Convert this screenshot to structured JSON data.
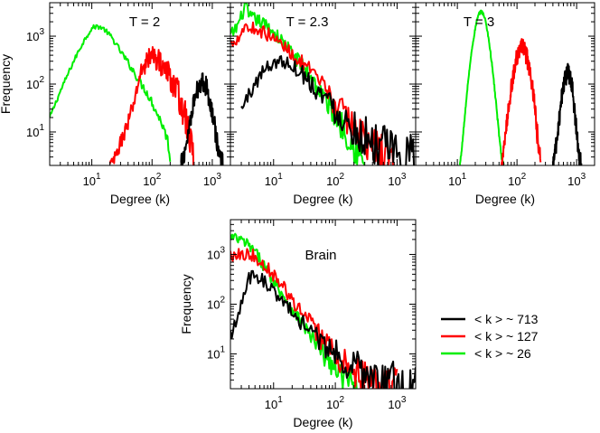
{
  "figure": {
    "legend": [
      {
        "label": "< k > ~ 713",
        "color": "#000000"
      },
      {
        "label": "< k > ~ 127",
        "color": "#ff0000"
      },
      {
        "label": "< k > ~ 26",
        "color": "#00ee00"
      }
    ]
  },
  "chart_data": [
    {
      "type": "line",
      "title": "T = 2",
      "xlabel": "Degree (k)",
      "ylabel": "Frequency",
      "xscale": "log",
      "yscale": "log",
      "xlim": [
        2,
        2000
      ],
      "ylim": [
        2,
        5000
      ],
      "xticks": [
        10,
        100,
        1000
      ],
      "xtick_labels": [
        {
          "base": "10",
          "exp": "1"
        },
        {
          "base": "10",
          "exp": "2"
        },
        {
          "base": "10",
          "exp": "3"
        }
      ],
      "yticks": [
        10,
        100,
        1000
      ],
      "ytick_labels": [
        {
          "base": "10",
          "exp": "1"
        },
        {
          "base": "10",
          "exp": "2"
        },
        {
          "base": "10",
          "exp": "3"
        }
      ],
      "series": [
        {
          "name": "< k > ~ 26",
          "color": "#00ee00",
          "noise": 0.05,
          "x": [
            2,
            2.5,
            3,
            4,
            5,
            6,
            7,
            8,
            9,
            10,
            11,
            12,
            14,
            16,
            20,
            25,
            30,
            40,
            50,
            60,
            80,
            100,
            120,
            150,
            180,
            200
          ],
          "y": [
            20,
            40,
            70,
            160,
            300,
            480,
            700,
            950,
            1200,
            1450,
            1550,
            1600,
            1550,
            1400,
            1050,
            700,
            480,
            280,
            180,
            120,
            70,
            42,
            25,
            14,
            7,
            3
          ]
        },
        {
          "name": "< k > ~ 127",
          "color": "#ff0000",
          "noise": 0.12,
          "x": [
            20,
            25,
            30,
            40,
            50,
            60,
            70,
            80,
            90,
            100,
            110,
            120,
            150,
            200,
            250,
            300,
            350,
            400,
            450,
            500
          ],
          "y": [
            2,
            3,
            6,
            15,
            40,
            120,
            220,
            300,
            350,
            380,
            370,
            340,
            250,
            140,
            80,
            42,
            22,
            11,
            5,
            2.5
          ]
        },
        {
          "name": "< k > ~ 713",
          "color": "#000000",
          "noise": 0.07,
          "x": [
            300,
            350,
            400,
            450,
            500,
            550,
            600,
            650,
            700,
            750,
            800,
            900,
            1000,
            1100,
            1200,
            1300,
            1400,
            1500
          ],
          "y": [
            2,
            4,
            10,
            25,
            45,
            70,
            95,
            110,
            115,
            105,
            85,
            50,
            25,
            12,
            6,
            3.5,
            2.5,
            2
          ]
        }
      ]
    },
    {
      "type": "line",
      "title": "T = 2.3",
      "xlabel": "Degree (k)",
      "ylabel": "",
      "xscale": "log",
      "yscale": "log",
      "xlim": [
        2,
        2000
      ],
      "ylim": [
        2,
        5000
      ],
      "xticks": [
        10,
        100,
        1000
      ],
      "xtick_labels": [
        {
          "base": "10",
          "exp": "1"
        },
        {
          "base": "10",
          "exp": "2"
        },
        {
          "base": "10",
          "exp": "3"
        }
      ],
      "yticks": [],
      "ytick_labels": [],
      "series": [
        {
          "name": "< k > ~ 26",
          "color": "#00ee00",
          "noise": 0.14,
          "x": [
            2,
            2.5,
            3,
            3.5,
            4,
            5,
            6,
            8,
            10,
            15,
            20,
            30,
            40,
            50,
            70,
            100,
            150,
            200,
            250,
            300
          ],
          "y": [
            1000,
            1500,
            2500,
            4500,
            2500,
            2300,
            2000,
            1600,
            1200,
            700,
            450,
            230,
            140,
            90,
            45,
            22,
            10,
            5,
            3,
            2
          ]
        },
        {
          "name": "< k > ~ 127",
          "color": "#ff0000",
          "noise": 0.14,
          "x": [
            2,
            2.5,
            3,
            3.5,
            4,
            5,
            6,
            8,
            10,
            15,
            20,
            30,
            40,
            50,
            70,
            100,
            150,
            200,
            300,
            500,
            700,
            1000
          ],
          "y": [
            700,
            900,
            1200,
            1800,
            1400,
            1500,
            1300,
            1100,
            900,
            600,
            430,
            260,
            170,
            120,
            70,
            40,
            20,
            13,
            7,
            4,
            3,
            2
          ]
        },
        {
          "name": "< k > ~ 713",
          "color": "#000000",
          "noise": 0.16,
          "x": [
            3,
            4,
            5,
            6,
            8,
            10,
            12,
            15,
            20,
            25,
            30,
            40,
            50,
            70,
            100,
            150,
            200,
            300,
            500,
            700,
            1000,
            1500,
            2000
          ],
          "y": [
            30,
            60,
            100,
            150,
            230,
            290,
            300,
            290,
            250,
            200,
            160,
            110,
            80,
            50,
            30,
            18,
            12,
            8,
            5,
            4,
            3,
            2.5,
            2
          ]
        }
      ]
    },
    {
      "type": "line",
      "title": "T = 3",
      "xlabel": "Degree (k)",
      "ylabel": "",
      "xscale": "log",
      "yscale": "log",
      "xlim": [
        2,
        2000
      ],
      "ylim": [
        2,
        5000
      ],
      "xticks": [
        10,
        100,
        1000
      ],
      "xtick_labels": [
        {
          "base": "10",
          "exp": "1"
        },
        {
          "base": "10",
          "exp": "2"
        },
        {
          "base": "10",
          "exp": "3"
        }
      ],
      "yticks": [],
      "ytick_labels": [],
      "series": [
        {
          "name": "< k > ~ 26",
          "color": "#00ee00",
          "noise": 0.03,
          "x": [
            11,
            12,
            13,
            14,
            15,
            17,
            19,
            21,
            23,
            25,
            27,
            30,
            33,
            36,
            40,
            45,
            50,
            55,
            60
          ],
          "y": [
            2,
            5,
            15,
            40,
            100,
            400,
            1000,
            2000,
            2900,
            3300,
            3000,
            2000,
            1000,
            450,
            150,
            35,
            9,
            3,
            2
          ]
        },
        {
          "name": "< k > ~ 127",
          "color": "#ff0000",
          "noise": 0.1,
          "x": [
            55,
            60,
            65,
            70,
            80,
            90,
            100,
            110,
            120,
            130,
            140,
            150,
            170,
            190,
            210,
            230,
            250
          ],
          "y": [
            2,
            4,
            10,
            25,
            80,
            200,
            380,
            520,
            580,
            550,
            450,
            320,
            140,
            50,
            15,
            5,
            2
          ]
        },
        {
          "name": "< k > ~ 713",
          "color": "#000000",
          "noise": 0.07,
          "x": [
            400,
            450,
            500,
            550,
            600,
            650,
            700,
            750,
            800,
            850,
            900,
            950,
            1000,
            1100,
            1200
          ],
          "y": [
            2,
            5,
            15,
            45,
            100,
            150,
            170,
            160,
            120,
            75,
            40,
            20,
            10,
            3,
            2
          ]
        }
      ]
    },
    {
      "type": "line",
      "title": "Brain",
      "xlabel": "Degree (k)",
      "ylabel": "Frequency",
      "xscale": "log",
      "yscale": "log",
      "xlim": [
        2,
        2000
      ],
      "ylim": [
        2,
        5000
      ],
      "xticks": [
        10,
        100,
        1000
      ],
      "xtick_labels": [
        {
          "base": "10",
          "exp": "1"
        },
        {
          "base": "10",
          "exp": "2"
        },
        {
          "base": "10",
          "exp": "3"
        }
      ],
      "yticks": [
        10,
        100,
        1000
      ],
      "ytick_labels": [
        {
          "base": "10",
          "exp": "1"
        },
        {
          "base": "10",
          "exp": "2"
        },
        {
          "base": "10",
          "exp": "3"
        }
      ],
      "series": [
        {
          "name": "< k > ~ 26",
          "color": "#00ee00",
          "noise": 0.12,
          "x": [
            2,
            3,
            4,
            5,
            6,
            8,
            10,
            15,
            20,
            30,
            40,
            50,
            70,
            100,
            150,
            200,
            250,
            300
          ],
          "y": [
            2200,
            1900,
            1500,
            1100,
            800,
            450,
            300,
            140,
            80,
            40,
            22,
            15,
            8,
            5,
            3,
            2.5,
            2.2,
            2
          ]
        },
        {
          "name": "< k > ~ 127",
          "color": "#ff0000",
          "noise": 0.14,
          "x": [
            2,
            3,
            4,
            5,
            6,
            8,
            10,
            15,
            20,
            30,
            50,
            70,
            100,
            150,
            200,
            300,
            500,
            700,
            1000
          ],
          "y": [
            1000,
            1100,
            1000,
            900,
            750,
            550,
            400,
            200,
            120,
            60,
            27,
            16,
            10,
            6,
            4,
            3,
            2.5,
            2.2,
            2
          ]
        },
        {
          "name": "< k > ~ 713",
          "color": "#000000",
          "noise": 0.15,
          "x": [
            2,
            2.5,
            3,
            3.5,
            4,
            5,
            6,
            7,
            8,
            10,
            12,
            15,
            20,
            30,
            50,
            70,
            100,
            150,
            200,
            300,
            500,
            700,
            1000,
            1500,
            2000
          ],
          "y": [
            25,
            50,
            100,
            200,
            320,
            380,
            350,
            300,
            230,
            180,
            140,
            100,
            70,
            42,
            22,
            15,
            10,
            7,
            5.5,
            4,
            3,
            2.5,
            2.3,
            2.1,
            2
          ]
        }
      ]
    }
  ]
}
